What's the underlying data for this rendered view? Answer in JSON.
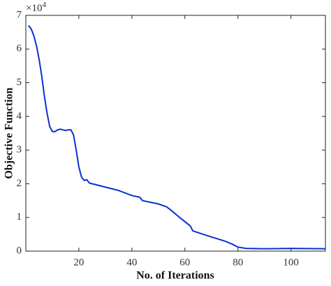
{
  "chart_data": {
    "type": "line",
    "xlabel": "No. of Iterations",
    "ylabel": "Objective Function",
    "y_multiplier": {
      "base": "×10",
      "exponent": "4"
    },
    "x": [
      1,
      2,
      3,
      4,
      5,
      6,
      7,
      8,
      9,
      10,
      11,
      12,
      13,
      14,
      15,
      16,
      17,
      18,
      19,
      20,
      21,
      22,
      23,
      24,
      26,
      30,
      35,
      40,
      43,
      44,
      50,
      53,
      55,
      58,
      62,
      63,
      70,
      75,
      78,
      80,
      83,
      90,
      100,
      113
    ],
    "series": [
      {
        "name": "Objective",
        "color": "#0a2fd6",
        "values": [
          6.7,
          6.6,
          6.4,
          6.1,
          5.7,
          5.2,
          4.6,
          4.1,
          3.7,
          3.55,
          3.55,
          3.6,
          3.62,
          3.6,
          3.58,
          3.6,
          3.6,
          3.45,
          3.0,
          2.5,
          2.2,
          2.1,
          2.12,
          2.02,
          1.98,
          1.9,
          1.8,
          1.65,
          1.6,
          1.5,
          1.4,
          1.32,
          1.2,
          1.0,
          0.75,
          0.6,
          0.42,
          0.3,
          0.2,
          0.12,
          0.08,
          0.07,
          0.08,
          0.07
        ]
      }
    ],
    "xlim": [
      0,
      113
    ],
    "xticks": [
      20,
      40,
      60,
      80,
      100
    ],
    "ylim": [
      0,
      7
    ],
    "yticks": [
      0,
      1,
      2,
      3,
      4,
      5,
      6,
      7
    ]
  }
}
